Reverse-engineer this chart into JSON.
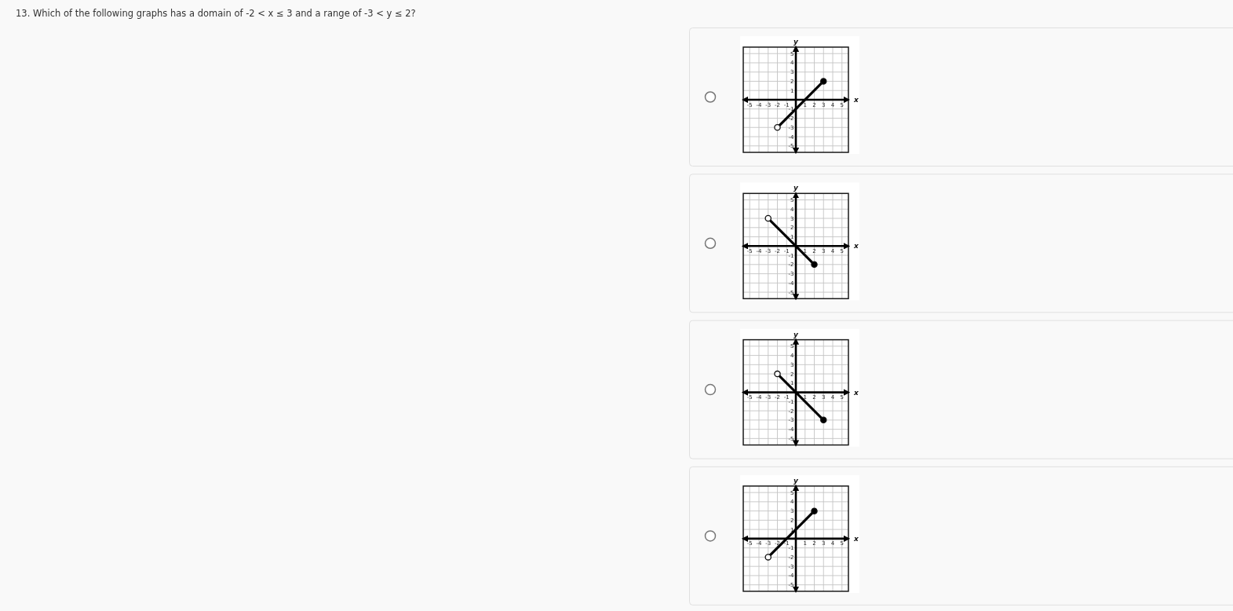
{
  "chart_data": [
    {
      "type": "line",
      "annotations": [
        "13. Which of the following graphs has a domain of -2 < x ≤ 3 and a range of -3 < y ≤ 2?"
      ],
      "xlabel": "x",
      "ylabel": "y",
      "x": [
        -2,
        3
      ],
      "series": [
        {
          "color": "#000000",
          "values": [
            -3,
            2
          ]
        },
        {
          "type": "scatter",
          "x": [
            -2
          ],
          "values": [
            -3
          ],
          "color": "#ffffff",
          "marker": "circle"
        },
        {
          "type": "scatter",
          "x": [
            3
          ],
          "values": [
            2
          ],
          "color": "#000000",
          "marker": "circle"
        }
      ],
      "xlim": [
        -5.7,
        5.7
      ],
      "ylim": [
        -5.7,
        5.7
      ],
      "xticks": [
        -5,
        -4,
        -3,
        -2,
        -1,
        1,
        2,
        3,
        4,
        5
      ],
      "yticks": [
        -5,
        -4,
        -3,
        -2,
        -1,
        1,
        2,
        3,
        4,
        5
      ],
      "grid": true
    },
    {
      "type": "line",
      "xlabel": "x",
      "ylabel": "y",
      "x": [
        -3,
        2
      ],
      "series": [
        {
          "color": "#000000",
          "values": [
            3,
            -2
          ]
        },
        {
          "type": "scatter",
          "x": [
            -3
          ],
          "values": [
            3
          ],
          "color": "#ffffff",
          "marker": "circle"
        },
        {
          "type": "scatter",
          "x": [
            2
          ],
          "values": [
            -2
          ],
          "color": "#000000",
          "marker": "circle"
        }
      ],
      "xlim": [
        -5.7,
        5.7
      ],
      "ylim": [
        -5.7,
        5.7
      ],
      "xticks": [
        -5,
        -4,
        -3,
        -2,
        -1,
        1,
        2,
        3,
        4,
        5
      ],
      "yticks": [
        -5,
        -4,
        -3,
        -2,
        -1,
        1,
        2,
        3,
        4,
        5
      ],
      "grid": true
    },
    {
      "type": "line",
      "xlabel": "x",
      "ylabel": "y",
      "x": [
        -2,
        3
      ],
      "series": [
        {
          "color": "#000000",
          "values": [
            2,
            -3
          ]
        },
        {
          "type": "scatter",
          "x": [
            -2
          ],
          "values": [
            2
          ],
          "color": "#ffffff",
          "marker": "circle"
        },
        {
          "type": "scatter",
          "x": [
            3
          ],
          "values": [
            -3
          ],
          "color": "#000000",
          "marker": "circle"
        }
      ],
      "xlim": [
        -5.7,
        5.7
      ],
      "ylim": [
        -5.7,
        5.7
      ],
      "xticks": [
        -5,
        -4,
        -3,
        -2,
        -1,
        1,
        2,
        3,
        4,
        5
      ],
      "yticks": [
        -5,
        -4,
        -3,
        -2,
        -1,
        1,
        2,
        3,
        4,
        5
      ],
      "grid": true
    },
    {
      "type": "line",
      "xlabel": "x",
      "ylabel": "y",
      "x": [
        -3,
        2
      ],
      "series": [
        {
          "color": "#000000",
          "values": [
            -2,
            3
          ]
        },
        {
          "type": "scatter",
          "x": [
            -3
          ],
          "values": [
            -2
          ],
          "color": "#ffffff",
          "marker": "circle"
        },
        {
          "type": "scatter",
          "x": [
            2
          ],
          "values": [
            3
          ],
          "color": "#000000",
          "marker": "circle"
        }
      ],
      "xlim": [
        -5.7,
        5.7
      ],
      "ylim": [
        -5.7,
        5.7
      ],
      "xticks": [
        -5,
        -4,
        -3,
        -2,
        -1,
        1,
        2,
        3,
        4,
        5
      ],
      "yticks": [
        -5,
        -4,
        -3,
        -2,
        -1,
        1,
        2,
        3,
        4,
        5
      ],
      "grid": true
    }
  ]
}
